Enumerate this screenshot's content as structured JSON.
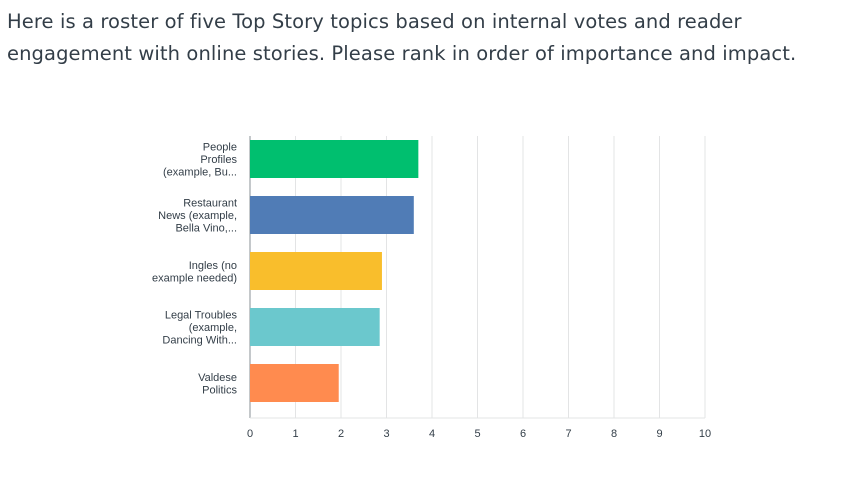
{
  "question": {
    "text": "Here is a roster of five Top Story topics based on internal votes and reader engagement with online stories. Please rank in order of importance and impact."
  },
  "chart_data": {
    "type": "bar",
    "orientation": "horizontal",
    "categories": [
      [
        "People",
        "Profiles",
        "(example, Bu..."
      ],
      [
        "Restaurant",
        "News (example,",
        "Bella Vino,..."
      ],
      [
        "Ingles (no",
        "example needed)"
      ],
      [
        "Legal Troubles",
        "(example,",
        "Dancing With..."
      ],
      [
        "Valdese",
        "Politics"
      ]
    ],
    "values": [
      3.7,
      3.6,
      2.9,
      2.85,
      1.95
    ],
    "colors": [
      "#00bf6f",
      "#507cb6",
      "#f9be2c",
      "#6bc8cd",
      "#ff8b4f"
    ],
    "xticks": [
      "0",
      "1",
      "2",
      "3",
      "4",
      "5",
      "6",
      "7",
      "8",
      "9",
      "10"
    ],
    "xlim": [
      0,
      10
    ],
    "grid": true,
    "title": "",
    "xlabel": "",
    "ylabel": ""
  }
}
